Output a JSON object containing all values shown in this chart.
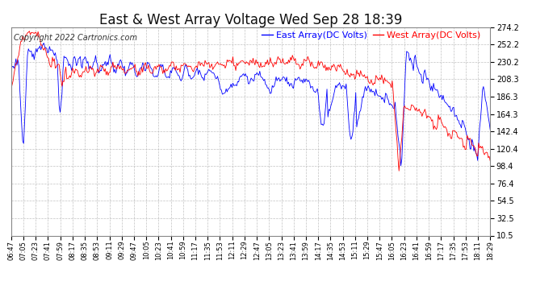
{
  "title": "East & West Array Voltage Wed Sep 28 18:39",
  "copyright": "Copyright 2022 Cartronics.com",
  "legend_east": "East Array(DC Volts)",
  "legend_west": "West Array(DC Volts)",
  "east_color": "blue",
  "west_color": "red",
  "background_color": "#ffffff",
  "plot_bg_color": "#ffffff",
  "grid_color": "#bbbbbb",
  "yticks": [
    10.5,
    32.5,
    54.5,
    76.4,
    98.4,
    120.4,
    142.4,
    164.3,
    186.3,
    208.3,
    230.2,
    252.2,
    274.2
  ],
  "ylim": [
    10.5,
    274.2
  ],
  "x_labels": [
    "06:47",
    "07:05",
    "07:23",
    "07:41",
    "07:59",
    "08:17",
    "08:35",
    "08:53",
    "09:11",
    "09:29",
    "09:47",
    "10:05",
    "10:23",
    "10:41",
    "10:59",
    "11:17",
    "11:35",
    "11:53",
    "12:11",
    "12:29",
    "12:47",
    "13:05",
    "13:23",
    "13:41",
    "13:59",
    "14:17",
    "14:35",
    "14:53",
    "15:11",
    "15:29",
    "15:47",
    "16:05",
    "16:23",
    "16:41",
    "16:59",
    "17:17",
    "17:35",
    "17:53",
    "18:11",
    "18:29"
  ],
  "title_fontsize": 12,
  "axis_fontsize": 7,
  "copyright_fontsize": 7,
  "legend_fontsize": 8
}
